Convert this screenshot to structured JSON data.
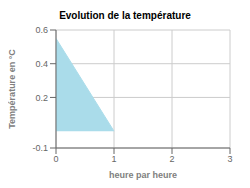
{
  "chart_data": {
    "type": "area",
    "title": "Evolution de la température",
    "xlabel": "heure par heure",
    "ylabel": "Température en °C",
    "x": [
      0,
      1
    ],
    "values": [
      0.55,
      0.0
    ],
    "color": "#aadcea",
    "xlim": [
      0,
      3
    ],
    "ylim": [
      -0.1,
      0.6
    ],
    "xticks": [
      0,
      1,
      2,
      3
    ],
    "yticks": [
      -0.1,
      0.2,
      0.4,
      0.6
    ],
    "grid": true
  }
}
